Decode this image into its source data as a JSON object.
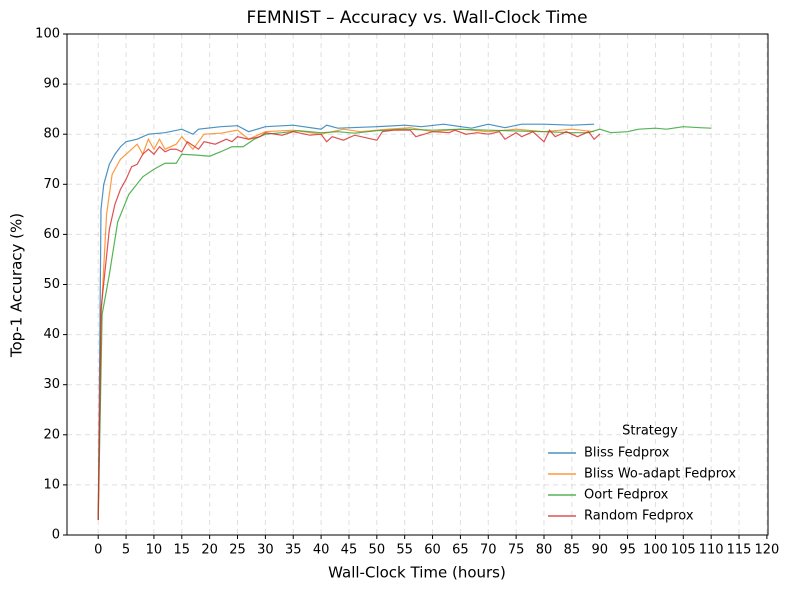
{
  "chart_data": {
    "type": "line",
    "title": "FEMNIST – Accuracy vs. Wall-Clock Time",
    "x_label": "Wall-Clock Time (hours)",
    "y_label": "Top-1 Accuracy (%)",
    "xlim": [
      -5.6,
      120.2
    ],
    "ylim": [
      0,
      100
    ],
    "xticks": [
      0,
      5,
      10,
      15,
      20,
      25,
      30,
      35,
      40,
      45,
      50,
      55,
      60,
      65,
      70,
      75,
      80,
      85,
      90,
      95,
      100,
      105,
      110,
      115,
      120
    ],
    "yticks": [
      0,
      10,
      20,
      30,
      40,
      50,
      60,
      70,
      80,
      90,
      100
    ],
    "grid": true,
    "legend": {
      "title": "Strategy",
      "loc": "lower right"
    },
    "series": [
      {
        "name": "Bliss Fedprox",
        "color": "#1f77b4",
        "x": [
          0,
          0.5,
          1,
          2,
          3,
          4,
          5,
          7,
          9,
          12,
          15,
          17,
          18,
          22,
          25,
          27,
          30,
          35,
          40,
          41,
          43,
          50,
          55,
          58,
          62,
          67,
          70,
          73,
          76,
          80,
          85,
          89
        ],
        "values": [
          3,
          65,
          70,
          74,
          76,
          77.5,
          78.5,
          79,
          80,
          80.3,
          81,
          80,
          81,
          81.5,
          81.7,
          80.5,
          81.5,
          81.8,
          81,
          81.8,
          81.2,
          81.5,
          81.8,
          81.5,
          82,
          81.2,
          82,
          81.3,
          82,
          82,
          81.8,
          82
        ]
      },
      {
        "name": "Bliss Wo-adapt Fedprox",
        "color": "#ff7f0e",
        "x": [
          0,
          0.5,
          1.5,
          2.5,
          4,
          6,
          7,
          8,
          9,
          10,
          11,
          12,
          14,
          15,
          17,
          19,
          22,
          25,
          27,
          30,
          35,
          40,
          44,
          47,
          52,
          56,
          60,
          65,
          70,
          75,
          80,
          85,
          89
        ],
        "values": [
          3,
          43,
          64,
          72,
          75,
          77,
          78,
          76,
          79,
          77,
          79,
          77,
          78,
          79.5,
          77,
          80,
          80.2,
          80.8,
          79,
          80.5,
          80.8,
          80,
          81,
          80.5,
          81,
          81.3,
          80.5,
          81,
          80.5,
          81,
          80.5,
          81,
          80.5
        ]
      },
      {
        "name": "Oort Fedprox",
        "color": "#2ca02c",
        "x": [
          0,
          0.7,
          2,
          3.5,
          5.5,
          8,
          10,
          12,
          14,
          15,
          18,
          20,
          22,
          24,
          26,
          28,
          30,
          33,
          36,
          40,
          43,
          46,
          50,
          55,
          60,
          65,
          70,
          80,
          85,
          88,
          90,
          92,
          95,
          97,
          100,
          102,
          105,
          108,
          110
        ],
        "values": [
          3,
          44,
          52,
          62.5,
          68,
          71.5,
          73,
          74.2,
          74.2,
          76,
          75.8,
          75.6,
          76.5,
          77.5,
          77.5,
          79,
          80,
          80.3,
          80.7,
          80.3,
          80.5,
          80.2,
          80.7,
          81,
          80.8,
          81,
          80.8,
          80.5,
          80.3,
          80.3,
          81,
          80.3,
          80.5,
          81,
          81.2,
          81,
          81.5,
          81.3,
          81.2
        ]
      },
      {
        "name": "Random Fedprox",
        "color": "#d62728",
        "x": [
          0,
          0.5,
          2,
          3,
          4,
          5,
          6,
          7,
          8,
          9,
          10,
          11,
          12,
          13,
          14,
          15,
          16,
          18,
          19,
          21,
          23,
          24,
          25,
          27,
          29,
          30,
          33,
          35,
          38,
          40,
          41,
          42,
          44,
          46,
          48,
          50,
          51,
          53,
          56,
          57,
          60,
          63,
          64,
          66,
          68,
          70,
          72,
          73,
          75,
          76,
          78,
          80,
          81,
          82,
          84,
          86,
          88,
          89,
          90
        ],
        "values": [
          3,
          45,
          61,
          66,
          69,
          71,
          73.5,
          74,
          76,
          77,
          76,
          77.5,
          76.5,
          77,
          77,
          76.5,
          78.5,
          77,
          78.5,
          78,
          79,
          78.5,
          79.5,
          79,
          79.5,
          80.3,
          79.8,
          80.5,
          79.8,
          80,
          78.5,
          79.5,
          78.8,
          79.8,
          79.3,
          78.8,
          80.5,
          80.8,
          80.8,
          79.5,
          80.5,
          80.3,
          80.8,
          80,
          80.3,
          80,
          80.5,
          79,
          80.3,
          79.5,
          80.5,
          78.5,
          80.8,
          79.5,
          80.5,
          79.5,
          80.5,
          79,
          80
        ]
      }
    ]
  }
}
